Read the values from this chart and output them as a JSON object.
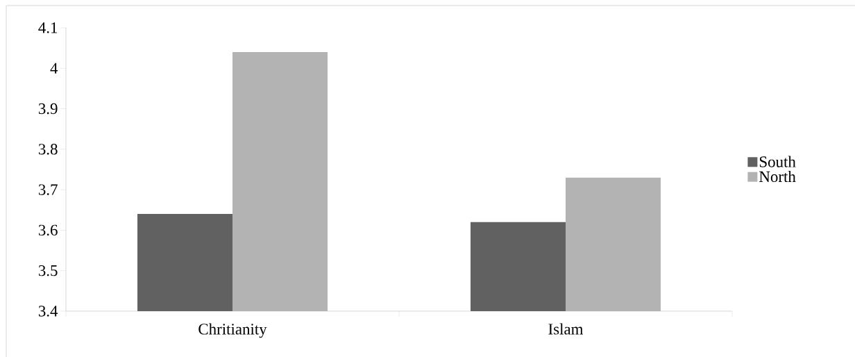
{
  "chart_data": {
    "type": "bar",
    "categories": [
      "Chritianity",
      "Islam"
    ],
    "series": [
      {
        "name": "South",
        "color": "#616161",
        "values": [
          3.64,
          3.62
        ]
      },
      {
        "name": "North",
        "color": "#b3b3b3",
        "values": [
          4.04,
          3.73
        ]
      }
    ],
    "ylim": [
      3.4,
      4.1
    ],
    "yticks": [
      3.4,
      3.5,
      3.6,
      3.7,
      3.8,
      3.9,
      4,
      4.1
    ],
    "grid": false,
    "legend": "right"
  }
}
